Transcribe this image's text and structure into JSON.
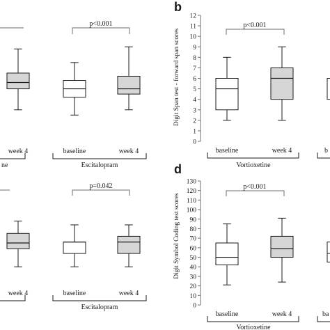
{
  "colors": {
    "stroke": "#1a1a1a",
    "axis": "#6d6d6d",
    "baseline_fill": "#ffffff",
    "week4_fill": "#d6d6d6"
  },
  "chart_data": [
    {
      "panel": "a",
      "type": "box",
      "visible_partially": true,
      "categories": [
        "baseline",
        "week 4"
      ],
      "groups": [
        {
          "name": "",
          "boxes": [
            null,
            {
              "label": "week 4",
              "min": 3.0,
              "q1": 5.0,
              "median": 5.6,
              "q3": 6.5,
              "max": 8.8
            }
          ]
        },
        {
          "name": "Escitalopram",
          "sig": "p<0.001",
          "boxes": [
            {
              "label": "baseline",
              "min": 2.5,
              "q1": 4.2,
              "median": 5.0,
              "q3": 5.8,
              "max": 7.5
            },
            {
              "label": "week 4",
              "min": 3.0,
              "q1": 4.5,
              "median": 5.0,
              "q3": 6.2,
              "max": 9.0
            }
          ]
        }
      ],
      "group_labels": [
        "ne",
        "Escitalopram"
      ]
    },
    {
      "panel": "b",
      "type": "box",
      "title_letter": "b",
      "ylabel": "Digit Span test - forward span scores",
      "ylim": [
        0,
        12
      ],
      "yticks": [
        0,
        1,
        2,
        3,
        4,
        5,
        6,
        7,
        8,
        9,
        10,
        11,
        12
      ],
      "group_labels": [
        "Vortioxetine",
        ""
      ],
      "sig": "p<0.001",
      "boxes": [
        {
          "label": "baseline",
          "min": 2,
          "q1": 3,
          "median": 5,
          "q3": 6,
          "max": 8
        },
        {
          "label": "week 4",
          "min": 2,
          "q1": 4,
          "median": 6,
          "q3": 7,
          "max": 9
        }
      ],
      "partial_box": {
        "q1": 4,
        "q3": 6
      },
      "partial_tick_label": "b"
    },
    {
      "panel": "c",
      "type": "box",
      "visible_partially": true,
      "group_labels": [
        "",
        "Escitalopram"
      ],
      "sig": "p=0.042",
      "boxes": [
        null,
        {
          "label": "week 4",
          "min": 40,
          "q1": 59,
          "median": 65,
          "q3": 75,
          "max": 88
        },
        {
          "label": "baseline",
          "min": 40,
          "q1": 54,
          "median": 66,
          "q3": 66,
          "max": 84
        },
        {
          "label": "week 4",
          "min": 40,
          "q1": 54,
          "median": 66,
          "q3": 72,
          "max": 84
        }
      ]
    },
    {
      "panel": "d",
      "type": "box",
      "title_letter": "d",
      "ylabel": "Digit Symbol Coding test scores",
      "ylim": [
        0,
        130
      ],
      "yticks": [
        0,
        10,
        20,
        30,
        40,
        50,
        60,
        70,
        80,
        90,
        100,
        110,
        120,
        130
      ],
      "group_labels": [
        "Vortioxetine",
        ""
      ],
      "sig": "p<0.001",
      "boxes": [
        {
          "label": "baseline",
          "min": 21,
          "q1": 42,
          "median": 50,
          "q3": 65,
          "max": 85
        },
        {
          "label": "week 4",
          "min": 24,
          "q1": 50,
          "median": 59,
          "q3": 72,
          "max": 91
        }
      ],
      "partial_box": {
        "q1": 45,
        "median": 54,
        "q3": 66
      },
      "partial_tick_label": "ba"
    }
  ],
  "text": {
    "letter_b": "b",
    "letter_d": "d",
    "ylabel_b": "Digit Span test - forward span scores",
    "ylabel_d": "Digit Symbol Coding test scores",
    "sig_a": "p<0.001",
    "sig_b": "p<0.001",
    "sig_c": "p=0.042",
    "sig_d": "p<0.001",
    "week4": "week 4",
    "baseline": "baseline",
    "group_a_left": "ne",
    "group_a_right": "Escitalopram",
    "group_b": "Vortioxetine",
    "group_c_right": "Escitalopram",
    "group_d": "Vortioxetine",
    "partial_b": "b",
    "partial_d": "ba"
  }
}
